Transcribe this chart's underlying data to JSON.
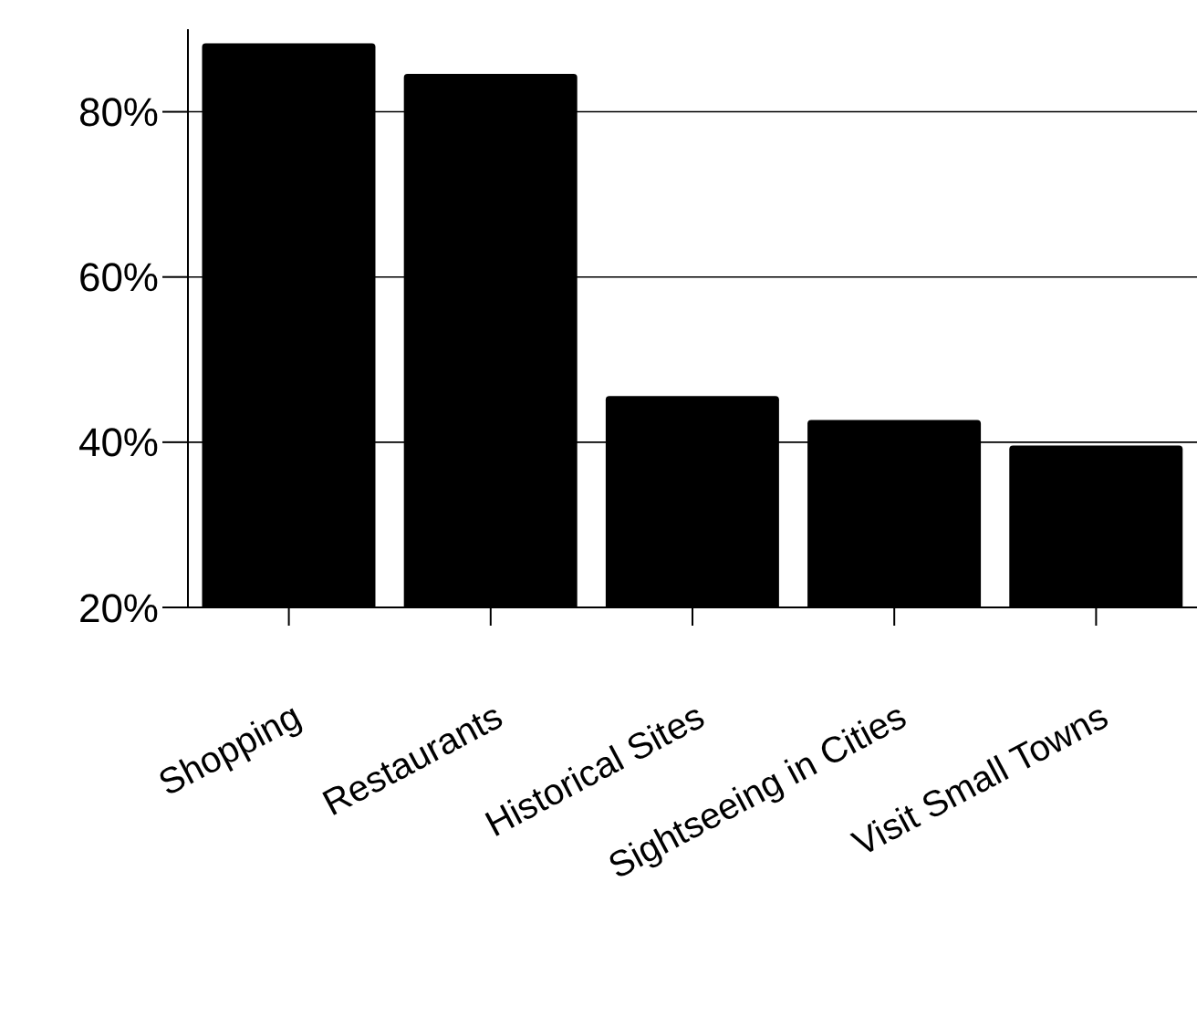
{
  "chart_data": {
    "type": "bar",
    "categories": [
      "Shopping",
      "Restaurants",
      "Historical Sites",
      "Sightseeing in Cities",
      "Visit Small Towns"
    ],
    "values": [
      88.3,
      84.6,
      45.6,
      42.7,
      39.6
    ],
    "color": "#000000",
    "ylim": [
      20,
      90
    ],
    "yticks": [
      {
        "value": 20,
        "label": "20%"
      },
      {
        "value": 40,
        "label": "40%"
      },
      {
        "value": 60,
        "label": "60%"
      },
      {
        "value": 80,
        "label": "80%"
      }
    ],
    "grid": "y",
    "legend": false
  }
}
